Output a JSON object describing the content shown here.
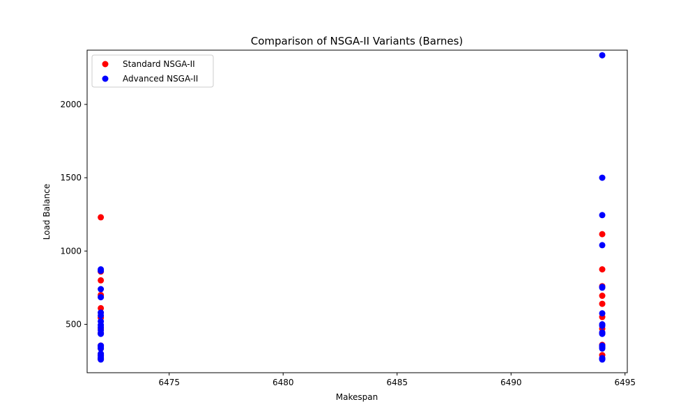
{
  "chart_data": {
    "type": "scatter",
    "title": "Comparison of NSGA-II Variants (Barnes)",
    "xlabel": "Makespan",
    "ylabel": "Load Balance",
    "xlim": [
      6471.4,
      6495.1
    ],
    "ylim": [
      170,
      2370
    ],
    "xticks": [
      6475,
      6480,
      6485,
      6490,
      6495
    ],
    "yticks": [
      500,
      1000,
      1500,
      2000
    ],
    "grid": false,
    "legend_position": "upper-left",
    "series": [
      {
        "name": "Standard NSGA-II",
        "color": "#ff0000",
        "points": [
          [
            6472,
            1230
          ],
          [
            6472,
            860
          ],
          [
            6472,
            800
          ],
          [
            6472,
            700
          ],
          [
            6472,
            610
          ],
          [
            6472,
            545
          ],
          [
            6472,
            470
          ],
          [
            6472,
            440
          ],
          [
            6472,
            355
          ],
          [
            6472,
            335
          ],
          [
            6472,
            290
          ],
          [
            6472,
            270
          ],
          [
            6472,
            262
          ],
          [
            6494,
            1115
          ],
          [
            6494,
            875
          ],
          [
            6494,
            760
          ],
          [
            6494,
            695
          ],
          [
            6494,
            640
          ],
          [
            6494,
            550
          ],
          [
            6494,
            470
          ],
          [
            6494,
            440
          ],
          [
            6494,
            360
          ],
          [
            6494,
            345
          ],
          [
            6494,
            290
          ],
          [
            6494,
            265
          ]
        ]
      },
      {
        "name": "Advanced NSGA-II",
        "color": "#0000ff",
        "points": [
          [
            6472,
            875
          ],
          [
            6472,
            865
          ],
          [
            6472,
            740
          ],
          [
            6472,
            685
          ],
          [
            6472,
            580
          ],
          [
            6472,
            560
          ],
          [
            6472,
            520
          ],
          [
            6472,
            495
          ],
          [
            6472,
            480
          ],
          [
            6472,
            460
          ],
          [
            6472,
            440
          ],
          [
            6472,
            435
          ],
          [
            6472,
            355
          ],
          [
            6472,
            345
          ],
          [
            6472,
            335
          ],
          [
            6472,
            300
          ],
          [
            6472,
            285
          ],
          [
            6472,
            275
          ],
          [
            6472,
            265
          ],
          [
            6472,
            260
          ],
          [
            6494,
            2335
          ],
          [
            6494,
            1500
          ],
          [
            6494,
            1245
          ],
          [
            6494,
            1040
          ],
          [
            6494,
            755
          ],
          [
            6494,
            750
          ],
          [
            6494,
            575
          ],
          [
            6494,
            500
          ],
          [
            6494,
            490
          ],
          [
            6494,
            445
          ],
          [
            6494,
            435
          ],
          [
            6494,
            355
          ],
          [
            6494,
            345
          ],
          [
            6494,
            335
          ],
          [
            6494,
            270
          ],
          [
            6494,
            265
          ],
          [
            6494,
            260
          ]
        ]
      }
    ]
  }
}
